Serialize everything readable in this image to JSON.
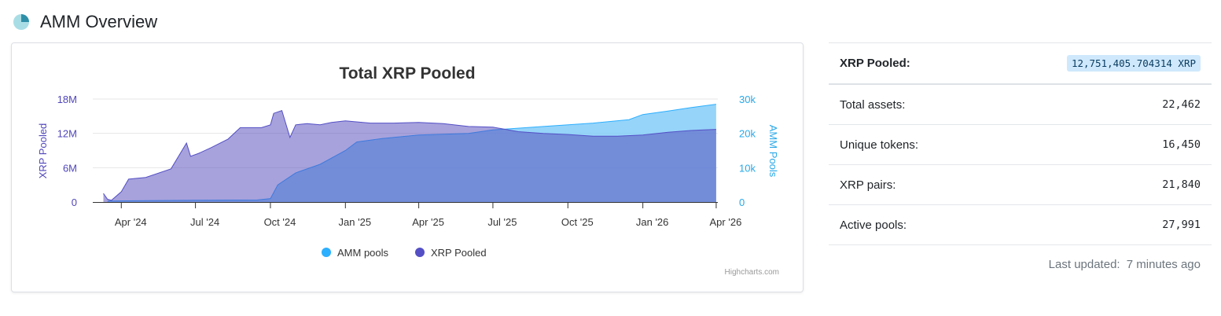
{
  "page": {
    "title": "AMM Overview",
    "icon": "pie-chart-icon"
  },
  "chart_data": {
    "type": "area",
    "title": "Total XRP Pooled",
    "credit": "Highcharts.com",
    "x_ticks": [
      "Apr '24",
      "Jul '24",
      "Oct '24",
      "Jan '25",
      "Apr '25",
      "Jul '25",
      "Oct '25",
      "Jan '26",
      "Apr '26"
    ],
    "y_left": {
      "label": "XRP Pooled",
      "ticks": [
        "0",
        "6M",
        "12M",
        "18M"
      ],
      "range": [
        0,
        18000000
      ]
    },
    "y_right": {
      "label": "AMM Pools",
      "ticks": [
        "0",
        "10k",
        "20k",
        "30k"
      ],
      "range": [
        0,
        30000
      ]
    },
    "legend_position": "bottom-center",
    "series": [
      {
        "name": "AMM pools",
        "axis": "right",
        "color": "#7cc9f8",
        "x": [
          "2024-03-15",
          "2024-05-01",
          "2024-07-01",
          "2024-09-15",
          "2024-10-01",
          "2024-10-10",
          "2024-11-01",
          "2024-12-01",
          "2025-01-01",
          "2025-01-15",
          "2025-02-15",
          "2025-04-01",
          "2025-06-01",
          "2025-07-01",
          "2025-09-01",
          "2025-11-01",
          "2025-12-15",
          "2026-01-01",
          "2026-02-01",
          "2026-03-01",
          "2026-04-01"
        ],
        "values": [
          300,
          400,
          500,
          600,
          1000,
          5000,
          8500,
          11000,
          15000,
          17500,
          18500,
          19500,
          20000,
          21000,
          22000,
          23000,
          24000,
          25500,
          26500,
          27500,
          28500
        ]
      },
      {
        "name": "XRP Pooled",
        "axis": "left",
        "color": "#5046b9",
        "x": [
          "2024-03-10",
          "2024-03-15",
          "2024-03-20",
          "2024-04-01",
          "2024-04-10",
          "2024-05-01",
          "2024-06-01",
          "2024-06-20",
          "2024-06-25",
          "2024-07-05",
          "2024-07-20",
          "2024-08-10",
          "2024-08-25",
          "2024-09-20",
          "2024-10-01",
          "2024-10-05",
          "2024-10-15",
          "2024-10-25",
          "2024-11-01",
          "2024-11-15",
          "2024-12-01",
          "2024-12-15",
          "2025-01-01",
          "2025-02-01",
          "2025-03-01",
          "2025-04-01",
          "2025-05-01",
          "2025-06-01",
          "2025-07-01",
          "2025-08-01",
          "2025-09-01",
          "2025-10-01",
          "2025-11-01",
          "2025-12-01",
          "2026-01-01",
          "2026-02-01",
          "2026-03-01",
          "2026-04-01"
        ],
        "values": [
          1500000,
          500000,
          300000,
          1800000,
          4000000,
          4300000,
          5800000,
          10300000,
          8000000,
          8500000,
          9500000,
          11000000,
          13000000,
          13000000,
          13500000,
          15500000,
          16000000,
          11300000,
          13500000,
          13700000,
          13500000,
          13900000,
          14200000,
          13800000,
          13800000,
          13900000,
          13700000,
          13200000,
          13100000,
          12300000,
          12000000,
          11800000,
          11500000,
          11500000,
          11700000,
          12200000,
          12500000,
          12700000
        ]
      }
    ]
  },
  "stats": {
    "pooled_label": "XRP Pooled:",
    "pooled_value": "12,751,405.704314 XRP",
    "rows": [
      {
        "label": "Total assets:",
        "value": "22,462"
      },
      {
        "label": "Unique tokens:",
        "value": "16,450"
      },
      {
        "label": "XRP pairs:",
        "value": "21,840"
      },
      {
        "label": "Active pools:",
        "value": "27,991"
      }
    ],
    "last_updated_label": "Last updated:",
    "last_updated_value": "7 minutes ago"
  }
}
